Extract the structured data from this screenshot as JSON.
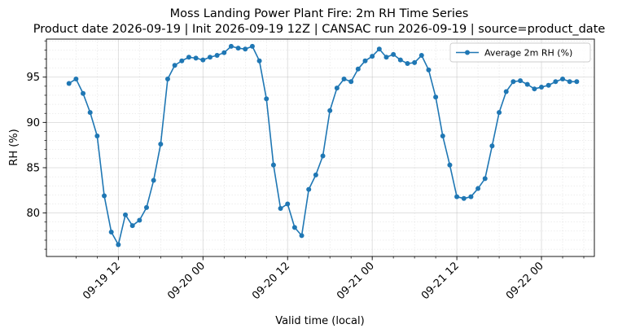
{
  "chart_data": {
    "type": "line",
    "title": "Moss Landing Power Plant Fire: 2m RH Time Series",
    "subtitle": "Product date 2026-09-19 | Init 2026-09-19 12Z | CANSAC run 2026-09-19 | source=product_date",
    "xlabel": "Valid time (local)",
    "ylabel": "RH (%)",
    "ylim": [
      75.2,
      99.2
    ],
    "y_ticks": [
      80,
      85,
      90,
      95
    ],
    "x_ticks": [
      "09-19 12",
      "09-20 00",
      "09-20 12",
      "09-21 00",
      "09-21 12",
      "09-22 00"
    ],
    "x_start": "2026-09-19 05:00",
    "x_step_hours": 1,
    "grid": true,
    "legend_position": "top-right",
    "color": "#1f77b4",
    "series": [
      {
        "name": "Average 2m RH (%)",
        "values": [
          94.3,
          94.8,
          93.2,
          91.1,
          88.5,
          81.9,
          77.9,
          76.5,
          79.8,
          78.6,
          79.2,
          80.6,
          83.6,
          87.6,
          94.8,
          96.3,
          96.8,
          97.2,
          97.1,
          96.9,
          97.2,
          97.4,
          97.7,
          98.4,
          98.2,
          98.1,
          98.4,
          96.8,
          92.6,
          85.3,
          80.5,
          81.0,
          78.4,
          77.5,
          82.6,
          84.2,
          86.3,
          91.3,
          93.8,
          94.8,
          94.5,
          95.9,
          96.8,
          97.3,
          98.1,
          97.2,
          97.5,
          96.9,
          96.5,
          96.6,
          97.4,
          95.8,
          92.8,
          88.5,
          85.3,
          81.8,
          81.6,
          81.8,
          82.7,
          83.8,
          87.4,
          91.1,
          93.4,
          94.5,
          94.6,
          94.2,
          93.7,
          93.9,
          94.1,
          94.5,
          94.8,
          94.5,
          94.5
        ]
      }
    ]
  }
}
